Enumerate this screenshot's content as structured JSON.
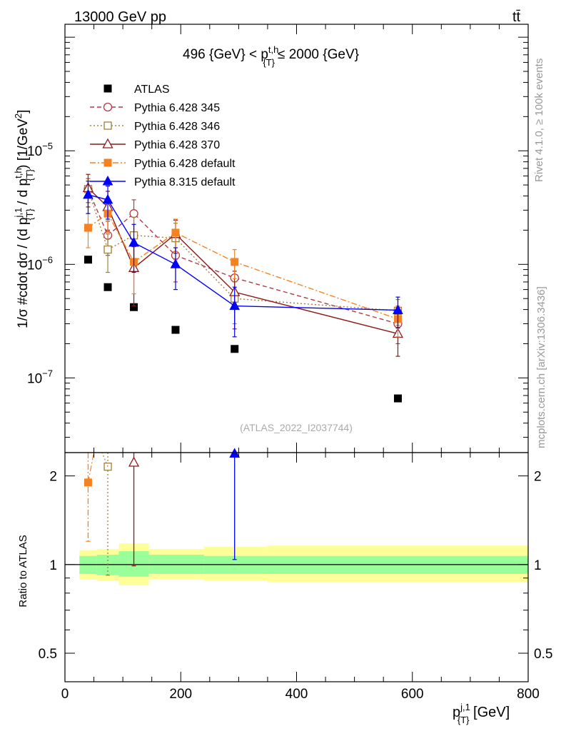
{
  "header": {
    "left": "13000 GeV pp",
    "right": "tt̄"
  },
  "side_labels": {
    "rivet": "Rivet 4.1.0, ≥ 100k events",
    "mcplots": "mcplots.cern.ch [arXiv:1306.3436]"
  },
  "colors": {
    "atlas": "#000000",
    "p345": "#b03a48",
    "p346": "#a08040",
    "p370": "#8b1a1a",
    "p6def": "#f58220",
    "p8def": "#0000ff",
    "band_inner": "#99ff99",
    "band_outer": "#ffff99"
  },
  "chart_data": [
    {
      "type": "scatter",
      "title": "496 {GeV} < p{T}^{t,h} ≤ 2000 {GeV}",
      "title_parts": {
        "left": "496 {GeV} < p",
        "sup": "t,h",
        "sub": "{T}",
        "right": "≤ 2000 {GeV}"
      },
      "ylabel": "1/σ #cdot dσ / (d p{T}^{j,1} / d p{T}^{t,h}) [1/GeV^2]",
      "ylabel_parts": {
        "a": "1/σ #cdot dσ / (d p",
        "sup1": "j,1",
        "sub1": "{T}",
        "b": " / d p",
        "sup2": "t,h",
        "sub2": "{T}",
        "c": ") [1/GeV",
        "sup3": "2",
        "d": "]"
      },
      "yscale": "log",
      "ylim": [
        2.2e-08,
        0.00013
      ],
      "xlim": [
        0,
        800
      ],
      "ytick_labels": [
        {
          "value": 1e-07,
          "base": "10",
          "exp": "−7"
        },
        {
          "value": 1e-06,
          "base": "10",
          "exp": "−6"
        },
        {
          "value": 1e-05,
          "base": "10",
          "exp": "−5"
        }
      ],
      "watermark": "(ATLAS_2022_I2037744)",
      "series": [
        {
          "key": "atlas",
          "name": "ATLAS",
          "marker": "square-filled",
          "line": "none",
          "x": [
            40,
            74,
            119,
            191,
            293,
            575
          ],
          "y": [
            1.1e-06,
            6.3e-07,
            4.2e-07,
            2.65e-07,
            1.8e-07,
            6.6e-08
          ]
        },
        {
          "key": "p345",
          "name": "Pythia 6.428 345",
          "marker": "circle-open",
          "line": "dashed",
          "x": [
            40,
            74,
            119,
            191,
            293,
            575
          ],
          "y": [
            4.6e-06,
            1.8e-06,
            2.8e-06,
            1.2e-06,
            7.6e-07,
            3e-07
          ],
          "yerr": [
            1.1e-06,
            6e-07,
            9e-07,
            5e-07,
            3e-07,
            1e-07
          ]
        },
        {
          "key": "p346",
          "name": "Pythia 6.428 346",
          "marker": "square-open",
          "line": "dotted",
          "x": [
            40,
            74,
            119,
            191,
            293,
            575
          ],
          "y": [
            4.6e-06,
            1.35e-06,
            1.8e-06,
            1.7e-06,
            5e-07,
            3.9e-07
          ],
          "yerr": [
            1.1e-06,
            5e-07,
            8e-07,
            6e-07,
            2e-07,
            1e-07
          ]
        },
        {
          "key": "p370",
          "name": "Pythia 6.428 370",
          "marker": "triangle-open",
          "line": "solid",
          "x": [
            40,
            74,
            119,
            191,
            293,
            575
          ],
          "y": [
            4.7e-06,
            3.2e-06,
            9.3e-07,
            1.85e-06,
            5.7e-07,
            2.45e-07
          ],
          "yerr": [
            1.5e-06,
            1.2e-06,
            5e-07,
            6e-07,
            3e-07,
            9e-08
          ]
        },
        {
          "key": "p6def",
          "name": "Pythia 6.428 default",
          "marker": "square-filled",
          "line": "dashdot",
          "x": [
            40,
            74,
            119,
            191,
            293,
            575
          ],
          "y": [
            2.1e-06,
            2.8e-06,
            1.05e-06,
            1.9e-06,
            1.05e-06,
            3.3e-07
          ],
          "yerr": [
            7e-07,
            9e-07,
            5e-07,
            6e-07,
            3e-07,
            1e-07
          ]
        },
        {
          "key": "p8def",
          "name": "Pythia 8.315 default",
          "marker": "triangle-filled",
          "line": "solid",
          "x": [
            40,
            74,
            119,
            191,
            293,
            575
          ],
          "y": [
            4.1e-06,
            3.7e-06,
            1.55e-06,
            1e-06,
            4.3e-07,
            3.95e-07
          ],
          "yerr": [
            1.3e-06,
            1.2e-06,
            7e-07,
            4e-07,
            2e-07,
            1.2e-07
          ]
        }
      ]
    },
    {
      "type": "scatter",
      "title": "Ratio to ATLAS",
      "ylabel": "Ratio to ATLAS",
      "xlabel": "p{T}^{j,1} [GeV]",
      "xlabel_parts": {
        "a": "p",
        "sup": "j,1",
        "sub": "{T}",
        "b": " [GeV]"
      },
      "yscale": "log",
      "ylim": [
        0.4,
        2.4
      ],
      "xlim": [
        0,
        800
      ],
      "xtick_labels": [
        "0",
        "200",
        "400",
        "600",
        "800"
      ],
      "ytick_labels": [
        "0.5",
        "1",
        "2"
      ],
      "ytick_values": [
        0.5,
        1,
        2
      ],
      "bins": [
        {
          "lo": 25,
          "hi": 55,
          "inner": [
            0.93,
            1.07
          ],
          "outer": [
            0.89,
            1.12
          ]
        },
        {
          "lo": 55,
          "hi": 93,
          "inner": [
            0.92,
            1.08
          ],
          "outer": [
            0.88,
            1.13
          ]
        },
        {
          "lo": 93,
          "hi": 145,
          "inner": [
            0.91,
            1.11
          ],
          "outer": [
            0.85,
            1.18
          ]
        },
        {
          "lo": 145,
          "hi": 240,
          "inner": [
            0.93,
            1.08
          ],
          "outer": [
            0.89,
            1.13
          ]
        },
        {
          "lo": 240,
          "hi": 350,
          "inner": [
            0.93,
            1.07
          ],
          "outer": [
            0.88,
            1.15
          ]
        },
        {
          "lo": 350,
          "hi": 800,
          "inner": [
            0.93,
            1.07
          ],
          "outer": [
            0.87,
            1.16
          ]
        }
      ],
      "series": [
        {
          "key": "p6def",
          "x": 40,
          "y": 1.9,
          "ylo": 1.2,
          "yhi": 2.4,
          "marker": "square-filled"
        },
        {
          "key": "p346",
          "x": 74,
          "y": 2.15,
          "ylo": 0.92,
          "yhi": 2.4,
          "marker": "square-open"
        },
        {
          "key": "p370",
          "x": 119,
          "y": 2.22,
          "ylo": 0.99,
          "yhi": 2.4,
          "marker": "triangle-open"
        },
        {
          "key": "p8def",
          "x": 293,
          "y": 2.38,
          "ylo": 1.04,
          "yhi": 2.4,
          "marker": "triangle-filled"
        }
      ]
    }
  ]
}
